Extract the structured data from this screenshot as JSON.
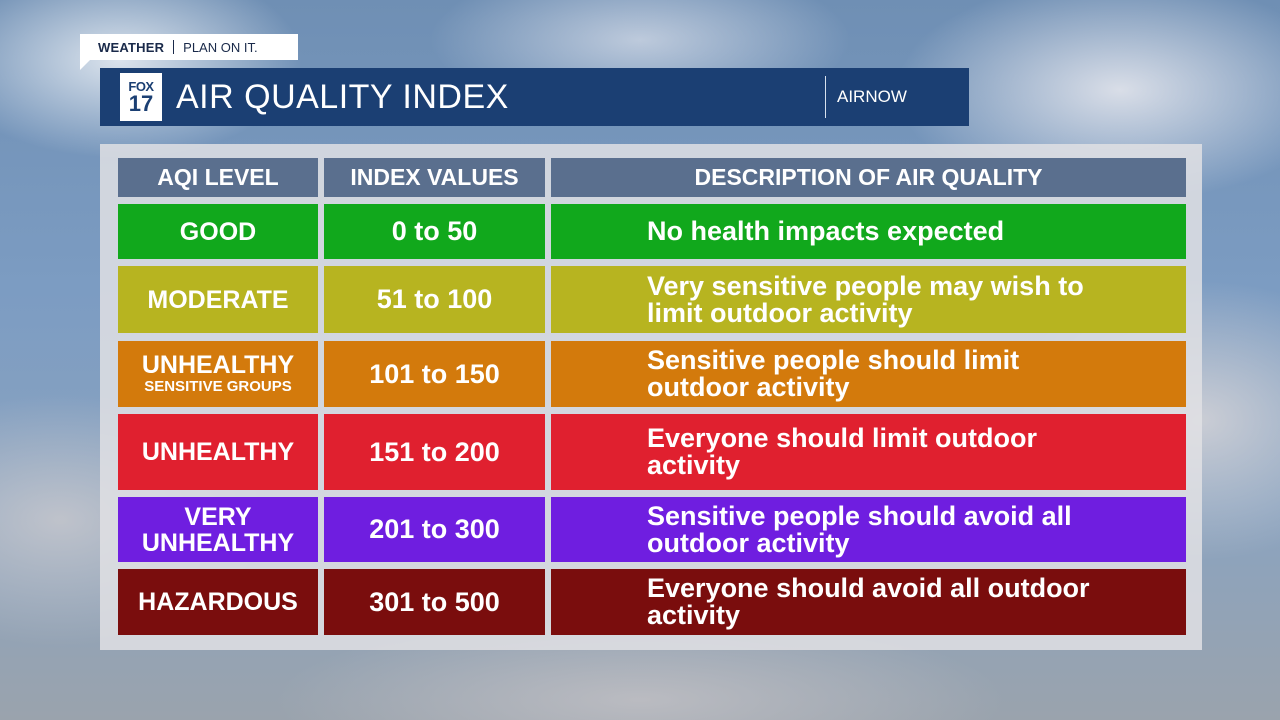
{
  "badge": {
    "brand": "WEATHER",
    "tagline": "PLAN ON IT."
  },
  "header": {
    "logo_top": "FOX",
    "logo_bottom": "17",
    "title": "AIR QUALITY INDEX",
    "source": "AIRNOW"
  },
  "table": {
    "columns": [
      "AQI LEVEL",
      "INDEX VALUES",
      "DESCRIPTION OF AIR QUALITY"
    ],
    "rows": [
      {
        "level": "GOOD",
        "level_sub": "",
        "range": "0 to 50",
        "description": "No health impacts expected",
        "color": "#11a81c"
      },
      {
        "level": "MODERATE",
        "level_sub": "",
        "range": "51 to 100",
        "description": "Very sensitive people may wish to limit outdoor activity",
        "color": "#b7b420"
      },
      {
        "level": "UNHEALTHY",
        "level_sub": "SENSITIVE GROUPS",
        "range": "101 to 150",
        "description": "Sensitive people should limit outdoor activity",
        "color": "#d37a0c"
      },
      {
        "level": "UNHEALTHY",
        "level_sub": "",
        "range": "151 to 200",
        "description": "Everyone should limit outdoor activity",
        "color": "#e0202f"
      },
      {
        "level": "VERY UNHEALTHY",
        "level_sub": "",
        "range": "201 to 300",
        "description": "Sensitive people should avoid all outdoor activity",
        "color": "#6f1ee0"
      },
      {
        "level": "HAZARDOUS",
        "level_sub": "",
        "range": "301 to 500",
        "description": "Everyone should avoid all outdoor activity",
        "color": "#7a0d0d"
      }
    ]
  }
}
